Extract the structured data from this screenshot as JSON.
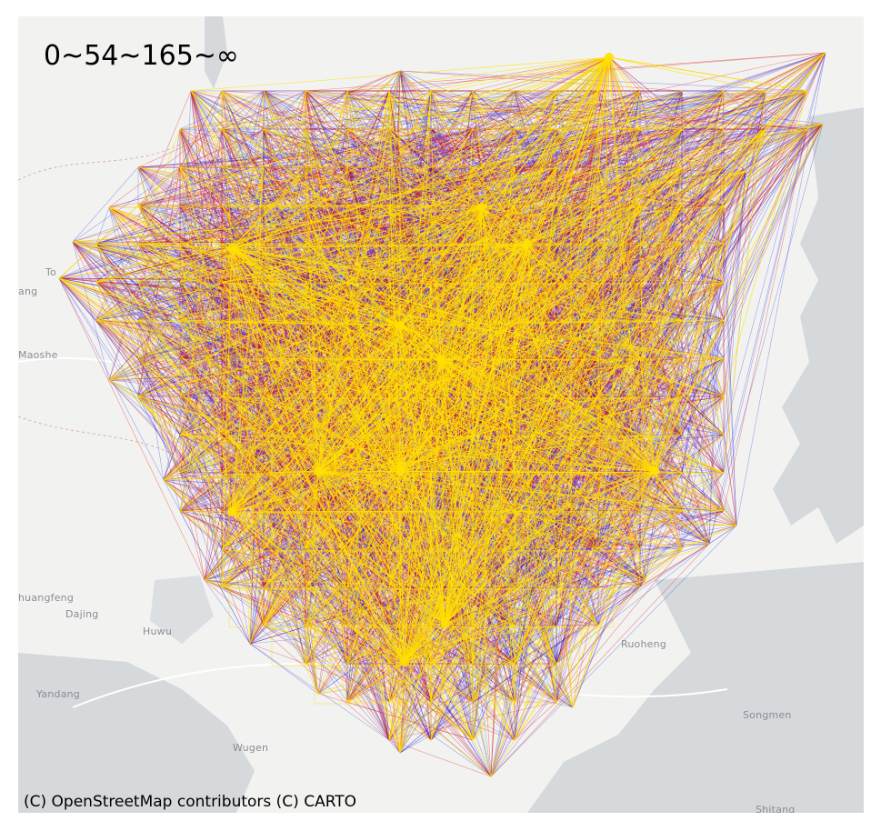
{
  "legend": {
    "range_text": "0~54~165~∞"
  },
  "attribution": "(C) OpenStreetMap contributors (C) CARTO",
  "colors": {
    "low": "#0a0adc",
    "mid": "#e01010",
    "high": "#ffe000",
    "water": "#d5d9dc",
    "land": "#f2f3f1"
  },
  "places": [
    {
      "id": "tong",
      "name": "To"
    },
    {
      "id": "ang",
      "name": "ang"
    },
    {
      "id": "maoshe",
      "name": "Maoshe"
    },
    {
      "id": "shuangfeng",
      "name": "huangfeng"
    },
    {
      "id": "dajing",
      "name": "Dajing"
    },
    {
      "id": "huwu",
      "name": "Huwu"
    },
    {
      "id": "yandang",
      "name": "Yandang"
    },
    {
      "id": "wugen",
      "name": "Wugen"
    },
    {
      "id": "ruoheng",
      "name": "Ruoheng"
    },
    {
      "id": "songmen",
      "name": "Songmen"
    },
    {
      "id": "shitang",
      "name": "Shitang"
    }
  ]
}
